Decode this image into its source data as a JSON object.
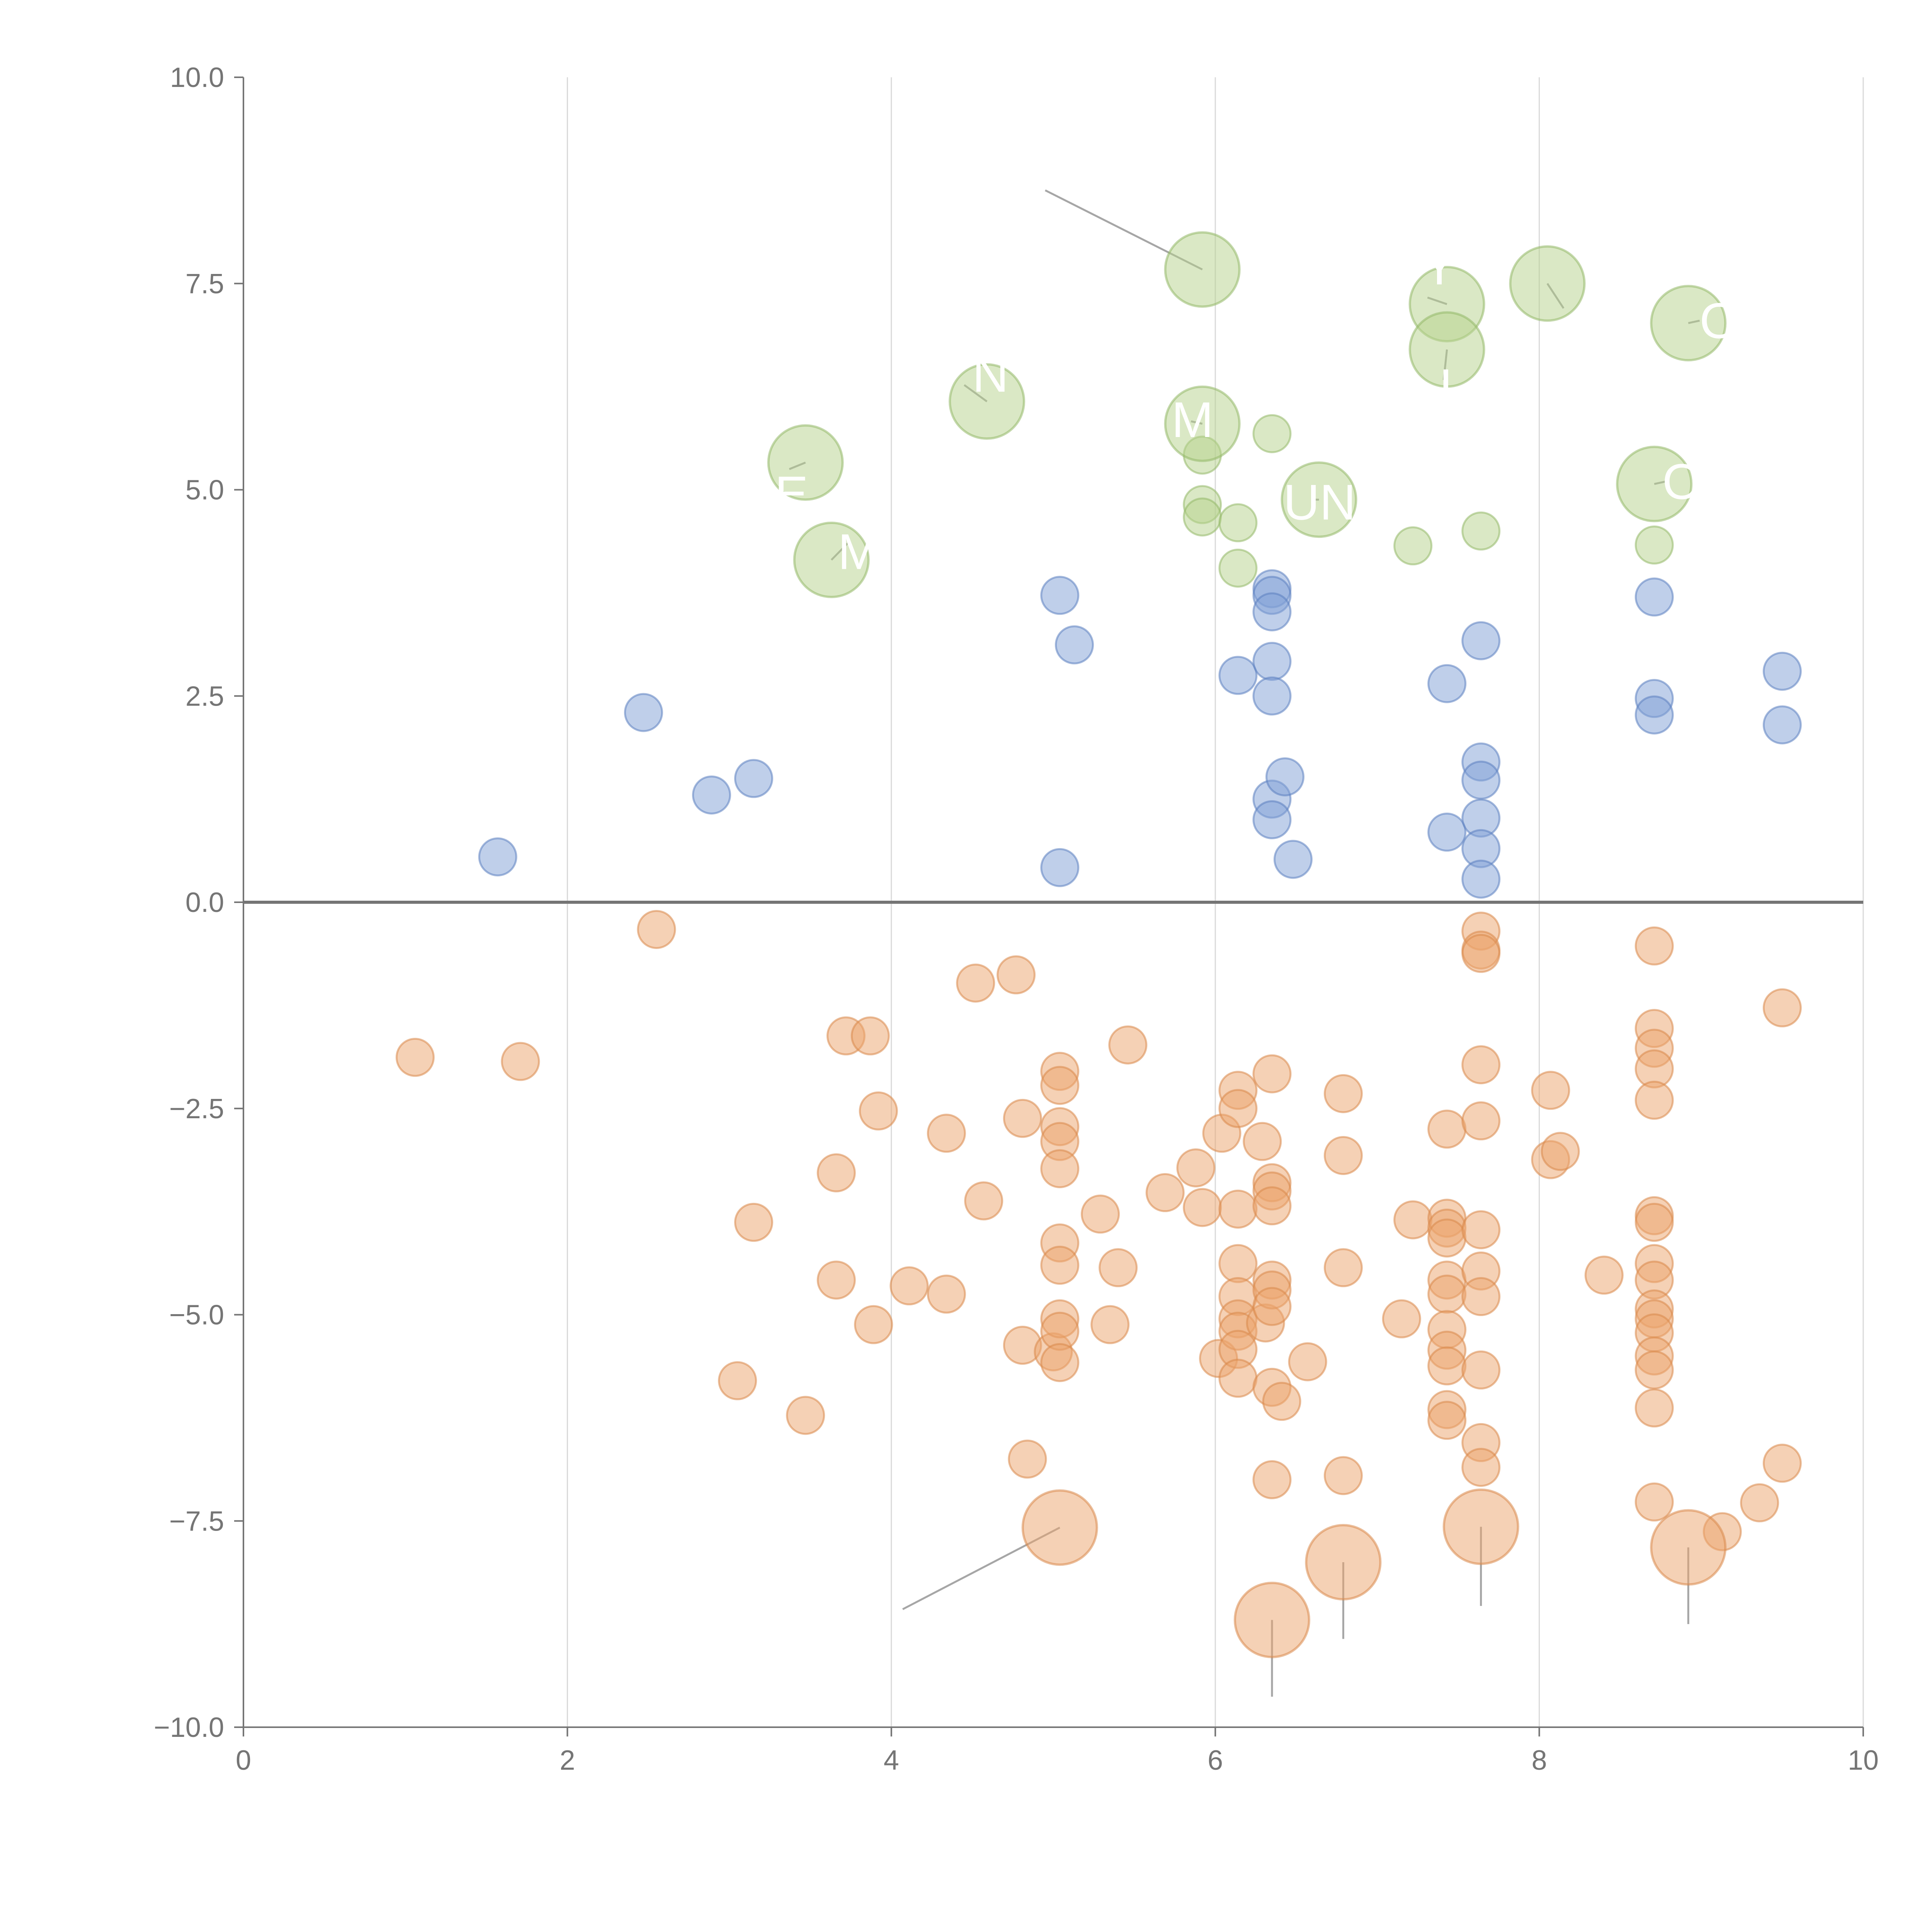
{
  "chart_data": {
    "type": "scatter",
    "title": "",
    "xlabel": "",
    "ylabel": "",
    "xlim": [
      0,
      10
    ],
    "ylim": [
      -10,
      10
    ],
    "x_ticks": [
      "0",
      "2",
      "4",
      "6",
      "8",
      "10"
    ],
    "y_ticks": [
      "−10.0",
      "−7.5",
      "−5.0",
      "−2.5",
      "0.0",
      "2.5",
      "5.0",
      "7.5",
      "10.0"
    ],
    "vertical_gridlines": true,
    "horizontal_gridlines": false,
    "legend": "none",
    "series": [
      {
        "color": "#7f9fd5",
        "stroke": "#5b7fc0",
        "points": [
          {
            "x": 1.57,
            "y": 0.55
          },
          {
            "x": 2.47,
            "y": 2.3
          },
          {
            "x": 2.89,
            "y": 1.3
          },
          {
            "x": 3.15,
            "y": 1.5
          },
          {
            "x": 5.04,
            "y": 3.72
          },
          {
            "x": 5.04,
            "y": 0.42
          },
          {
            "x": 5.13,
            "y": 3.12
          },
          {
            "x": 6.14,
            "y": 2.75
          },
          {
            "x": 6.35,
            "y": 3.8
          },
          {
            "x": 6.35,
            "y": 3.72
          },
          {
            "x": 6.35,
            "y": 3.52
          },
          {
            "x": 6.35,
            "y": 2.92
          },
          {
            "x": 6.35,
            "y": 2.5
          },
          {
            "x": 6.35,
            "y": 1.25
          },
          {
            "x": 6.35,
            "y": 1.0
          },
          {
            "x": 6.43,
            "y": 1.52
          },
          {
            "x": 6.48,
            "y": 0.52
          },
          {
            "x": 7.43,
            "y": 2.65
          },
          {
            "x": 7.43,
            "y": 0.85
          },
          {
            "x": 7.64,
            "y": 3.17
          },
          {
            "x": 7.64,
            "y": 1.7
          },
          {
            "x": 7.64,
            "y": 1.48
          },
          {
            "x": 7.64,
            "y": 1.02
          },
          {
            "x": 7.64,
            "y": 0.65
          },
          {
            "x": 7.64,
            "y": 0.28
          },
          {
            "x": 8.71,
            "y": 3.7
          },
          {
            "x": 8.71,
            "y": 2.47
          },
          {
            "x": 8.71,
            "y": 2.27
          },
          {
            "x": 9.5,
            "y": 2.8
          },
          {
            "x": 9.5,
            "y": 2.15
          }
        ]
      },
      {
        "color": "#b5d18c",
        "stroke": "#93b868",
        "points": [
          {
            "x": 5.92,
            "y": 5.42
          },
          {
            "x": 5.92,
            "y": 4.82
          },
          {
            "x": 5.92,
            "y": 4.67
          },
          {
            "x": 6.14,
            "y": 4.6
          },
          {
            "x": 6.14,
            "y": 4.05
          },
          {
            "x": 6.35,
            "y": 5.68
          },
          {
            "x": 7.22,
            "y": 4.32
          },
          {
            "x": 7.64,
            "y": 4.5
          },
          {
            "x": 8.71,
            "y": 4.33
          }
        ]
      },
      {
        "color": "#eba46c",
        "stroke": "#d9884a",
        "points": [
          {
            "x": 1.06,
            "y": -1.88
          },
          {
            "x": 1.71,
            "y": -1.93
          },
          {
            "x": 2.55,
            "y": -0.33
          },
          {
            "x": 3.05,
            "y": -5.8
          },
          {
            "x": 3.15,
            "y": -3.88
          },
          {
            "x": 3.47,
            "y": -6.22
          },
          {
            "x": 3.66,
            "y": -3.28
          },
          {
            "x": 3.66,
            "y": -4.58
          },
          {
            "x": 3.72,
            "y": -1.62
          },
          {
            "x": 3.87,
            "y": -1.62
          },
          {
            "x": 3.89,
            "y": -5.12
          },
          {
            "x": 3.92,
            "y": -2.53
          },
          {
            "x": 4.11,
            "y": -4.65
          },
          {
            "x": 4.34,
            "y": -2.8
          },
          {
            "x": 4.34,
            "y": -4.75
          },
          {
            "x": 4.52,
            "y": -0.98
          },
          {
            "x": 4.57,
            "y": -3.62
          },
          {
            "x": 4.77,
            "y": -0.88
          },
          {
            "x": 4.81,
            "y": -2.62
          },
          {
            "x": 4.81,
            "y": -5.37
          },
          {
            "x": 4.84,
            "y": -6.75
          },
          {
            "x": 5.0,
            "y": -5.45
          },
          {
            "x": 5.04,
            "y": -2.05
          },
          {
            "x": 5.04,
            "y": -2.22
          },
          {
            "x": 5.04,
            "y": -2.72
          },
          {
            "x": 5.04,
            "y": -2.9
          },
          {
            "x": 5.04,
            "y": -3.23
          },
          {
            "x": 5.04,
            "y": -4.13
          },
          {
            "x": 5.04,
            "y": -4.4
          },
          {
            "x": 5.04,
            "y": -5.05
          },
          {
            "x": 5.04,
            "y": -5.2
          },
          {
            "x": 5.04,
            "y": -5.58
          },
          {
            "x": 5.29,
            "y": -3.78
          },
          {
            "x": 5.35,
            "y": -5.12
          },
          {
            "x": 5.4,
            "y": -4.43
          },
          {
            "x": 5.46,
            "y": -1.73
          },
          {
            "x": 5.69,
            "y": -3.52
          },
          {
            "x": 5.88,
            "y": -3.22
          },
          {
            "x": 5.92,
            "y": -3.7
          },
          {
            "x": 6.02,
            "y": -5.53
          },
          {
            "x": 6.04,
            "y": -2.8
          },
          {
            "x": 6.14,
            "y": -2.28
          },
          {
            "x": 6.14,
            "y": -2.5
          },
          {
            "x": 6.14,
            "y": -3.72
          },
          {
            "x": 6.14,
            "y": -4.38
          },
          {
            "x": 6.14,
            "y": -4.78
          },
          {
            "x": 6.14,
            "y": -5.05
          },
          {
            "x": 6.14,
            "y": -5.2
          },
          {
            "x": 6.14,
            "y": -5.42
          },
          {
            "x": 6.14,
            "y": -5.77
          },
          {
            "x": 6.29,
            "y": -2.9
          },
          {
            "x": 6.31,
            "y": -5.1
          },
          {
            "x": 6.35,
            "y": -2.08
          },
          {
            "x": 6.35,
            "y": -3.4
          },
          {
            "x": 6.35,
            "y": -3.5
          },
          {
            "x": 6.35,
            "y": -3.68
          },
          {
            "x": 6.35,
            "y": -4.58
          },
          {
            "x": 6.35,
            "y": -4.7
          },
          {
            "x": 6.35,
            "y": -4.9
          },
          {
            "x": 6.35,
            "y": -5.88
          },
          {
            "x": 6.35,
            "y": -7.0
          },
          {
            "x": 6.41,
            "y": -6.05
          },
          {
            "x": 6.57,
            "y": -5.57
          },
          {
            "x": 6.79,
            "y": -2.32
          },
          {
            "x": 6.79,
            "y": -3.07
          },
          {
            "x": 6.79,
            "y": -4.43
          },
          {
            "x": 6.79,
            "y": -6.95
          },
          {
            "x": 7.15,
            "y": -5.05
          },
          {
            "x": 7.22,
            "y": -3.85
          },
          {
            "x": 7.43,
            "y": -2.75
          },
          {
            "x": 7.43,
            "y": -3.83
          },
          {
            "x": 7.43,
            "y": -3.95
          },
          {
            "x": 7.43,
            "y": -4.07
          },
          {
            "x": 7.43,
            "y": -4.58
          },
          {
            "x": 7.43,
            "y": -4.75
          },
          {
            "x": 7.43,
            "y": -5.18
          },
          {
            "x": 7.43,
            "y": -5.43
          },
          {
            "x": 7.43,
            "y": -5.62
          },
          {
            "x": 7.43,
            "y": -6.15
          },
          {
            "x": 7.43,
            "y": -6.28
          },
          {
            "x": 7.64,
            "y": -0.35
          },
          {
            "x": 7.64,
            "y": -0.58
          },
          {
            "x": 7.64,
            "y": -0.62
          },
          {
            "x": 7.64,
            "y": -1.97
          },
          {
            "x": 7.64,
            "y": -2.65
          },
          {
            "x": 7.64,
            "y": -3.97
          },
          {
            "x": 7.64,
            "y": -4.47
          },
          {
            "x": 7.64,
            "y": -4.78
          },
          {
            "x": 7.64,
            "y": -5.67
          },
          {
            "x": 7.64,
            "y": -6.55
          },
          {
            "x": 7.64,
            "y": -6.85
          },
          {
            "x": 8.07,
            "y": -2.28
          },
          {
            "x": 8.07,
            "y": -3.12
          },
          {
            "x": 8.13,
            "y": -3.02
          },
          {
            "x": 8.4,
            "y": -4.52
          },
          {
            "x": 8.71,
            "y": -0.53
          },
          {
            "x": 8.71,
            "y": -1.53
          },
          {
            "x": 8.71,
            "y": -1.77
          },
          {
            "x": 8.71,
            "y": -2.02
          },
          {
            "x": 8.71,
            "y": -2.4
          },
          {
            "x": 8.71,
            "y": -3.8
          },
          {
            "x": 8.71,
            "y": -3.88
          },
          {
            "x": 8.71,
            "y": -4.38
          },
          {
            "x": 8.71,
            "y": -4.58
          },
          {
            "x": 8.71,
            "y": -4.93
          },
          {
            "x": 8.71,
            "y": -5.05
          },
          {
            "x": 8.71,
            "y": -5.22
          },
          {
            "x": 8.71,
            "y": -5.5
          },
          {
            "x": 8.71,
            "y": -5.67
          },
          {
            "x": 8.71,
            "y": -6.13
          },
          {
            "x": 8.71,
            "y": -7.27
          },
          {
            "x": 9.13,
            "y": -7.63
          },
          {
            "x": 9.36,
            "y": -7.28
          },
          {
            "x": 9.5,
            "y": -1.28
          },
          {
            "x": 9.5,
            "y": -6.8
          }
        ]
      }
    ],
    "callouts": [
      {
        "color": "#b5d18c",
        "stroke": "#93b868",
        "x": 3.63,
        "y": 4.15,
        "text": "M",
        "tx": 3.67,
        "ty": 4.25,
        "lx2": 3.63,
        "ly2": 4.15,
        "lx1": 3.73,
        "ly1": 4.35
      },
      {
        "color": "#b5d18c",
        "stroke": "#93b868",
        "x": 3.47,
        "y": 5.33,
        "text": "E",
        "tx": 3.28,
        "ty": 4.95,
        "lx2": 3.47,
        "ly2": 5.33,
        "lx1": 3.37,
        "ly1": 5.25
      },
      {
        "color": "#b5d18c",
        "stroke": "#93b868",
        "x": 4.59,
        "y": 6.07,
        "text": "N",
        "tx": 4.5,
        "ty": 6.4,
        "lx2": 4.59,
        "ly2": 6.07,
        "lx1": 4.45,
        "ly1": 6.27
      },
      {
        "color": "#b5d18c",
        "stroke": "#93b868",
        "x": 5.92,
        "y": 5.8,
        "text": "M",
        "tx": 5.73,
        "ty": 5.85,
        "lx2": 5.92,
        "ly2": 5.8,
        "lx1": 5.85,
        "ly1": 5.83
      },
      {
        "color": "#b5d18c",
        "stroke": "#93b868",
        "x": 5.92,
        "y": 7.67,
        "text": "",
        "tx": 4.9,
        "ty": 8.65,
        "lx2": 5.92,
        "ly2": 7.67,
        "lx1": 4.95,
        "ly1": 8.63
      },
      {
        "color": "#b5d18c",
        "stroke": "#93b868",
        "x": 6.64,
        "y": 4.88,
        "text": "UN",
        "tx": 6.42,
        "ty": 4.85,
        "lx2": 6.64,
        "ly2": 4.88,
        "lx1": 6.6,
        "ly1": 4.88
      },
      {
        "color": "#b5d18c",
        "stroke": "#93b868",
        "x": 7.43,
        "y": 7.25,
        "text": "Y",
        "tx": 7.28,
        "ty": 7.7,
        "lx2": 7.43,
        "ly2": 7.25,
        "lx1": 7.31,
        "ly1": 7.33
      },
      {
        "color": "#b5d18c",
        "stroke": "#93b868",
        "x": 7.43,
        "y": 6.7,
        "text": "I",
        "tx": 7.38,
        "ty": 6.25,
        "lx2": 7.43,
        "ly2": 6.7,
        "lx1": 7.41,
        "ly1": 6.33
      },
      {
        "color": "#b5d18c",
        "stroke": "#93b868",
        "x": 8.05,
        "y": 7.5,
        "text": "",
        "tx": 8.2,
        "ty": 7.2,
        "lx2": 8.05,
        "ly2": 7.5,
        "lx1": 8.15,
        "ly1": 7.2
      },
      {
        "color": "#b5d18c",
        "stroke": "#93b868",
        "x": 8.92,
        "y": 7.02,
        "text": "O",
        "tx": 8.99,
        "ty": 7.05,
        "lx2": 8.92,
        "ly2": 7.02,
        "lx1": 8.99,
        "ly1": 7.05
      },
      {
        "color": "#b5d18c",
        "stroke": "#93b868",
        "x": 8.71,
        "y": 5.07,
        "text": "O",
        "tx": 8.76,
        "ty": 5.1,
        "lx2": 8.71,
        "ly2": 5.07,
        "lx1": 8.78,
        "ly1": 5.1
      },
      {
        "color": "#eba46c",
        "stroke": "#d9884a",
        "x": 5.04,
        "y": -7.58,
        "text": "",
        "tx": 4.02,
        "ty": -8.65,
        "lx2": 5.04,
        "ly2": -7.58,
        "lx1": 4.07,
        "ly1": -8.57
      },
      {
        "color": "#eba46c",
        "stroke": "#d9884a",
        "x": 6.79,
        "y": -8.0,
        "text": "",
        "tx": 6.8,
        "ty": -9.0,
        "lx2": 6.79,
        "ly2": -8.0,
        "lx1": 6.79,
        "ly1": -8.93
      },
      {
        "color": "#eba46c",
        "stroke": "#d9884a",
        "x": 7.64,
        "y": -7.57,
        "text": "",
        "tx": 7.64,
        "ty": -8.6,
        "lx2": 7.64,
        "ly2": -7.57,
        "lx1": 7.64,
        "ly1": -8.53
      },
      {
        "color": "#eba46c",
        "stroke": "#d9884a",
        "x": 6.35,
        "y": -8.7,
        "text": "",
        "tx": 6.35,
        "ty": -9.7,
        "lx2": 6.35,
        "ly2": -8.7,
        "lx1": 6.35,
        "ly1": -9.63
      },
      {
        "color": "#eba46c",
        "stroke": "#d9884a",
        "x": 8.92,
        "y": -7.82,
        "text": "",
        "tx": 8.92,
        "ty": -8.85,
        "lx2": 8.92,
        "ly2": -7.82,
        "lx1": 8.92,
        "ly1": -8.75
      }
    ]
  }
}
